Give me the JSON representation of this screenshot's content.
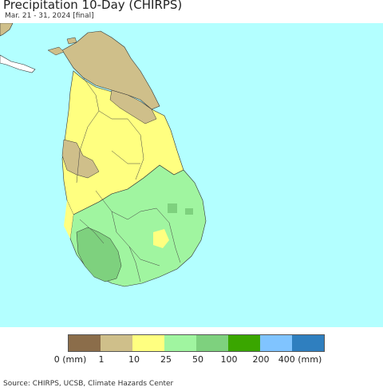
{
  "title": "Precipitation 10-Day (CHIRPS)",
  "subtitle": "Mar. 21 - 31, 2024 [final]",
  "source": "Source: CHIRPS, UCSB, Climate Hazards Center",
  "colors": {
    "ocean": "#b3ffff",
    "land_outside": "#ffffff",
    "boundary": "#333333"
  },
  "legend": {
    "swatches": [
      {
        "color": "#8b6d4a"
      },
      {
        "color": "#cfbf8a"
      },
      {
        "color": "#ffff80"
      },
      {
        "color": "#a0f5a0"
      },
      {
        "color": "#7ed17e"
      },
      {
        "color": "#3aa600"
      },
      {
        "color": "#80c4ff"
      },
      {
        "color": "#2f7fbf"
      }
    ],
    "ticks": [
      "0 (mm)",
      "1",
      "10",
      "25",
      "50",
      "100",
      "200",
      "400 (mm)"
    ]
  }
}
